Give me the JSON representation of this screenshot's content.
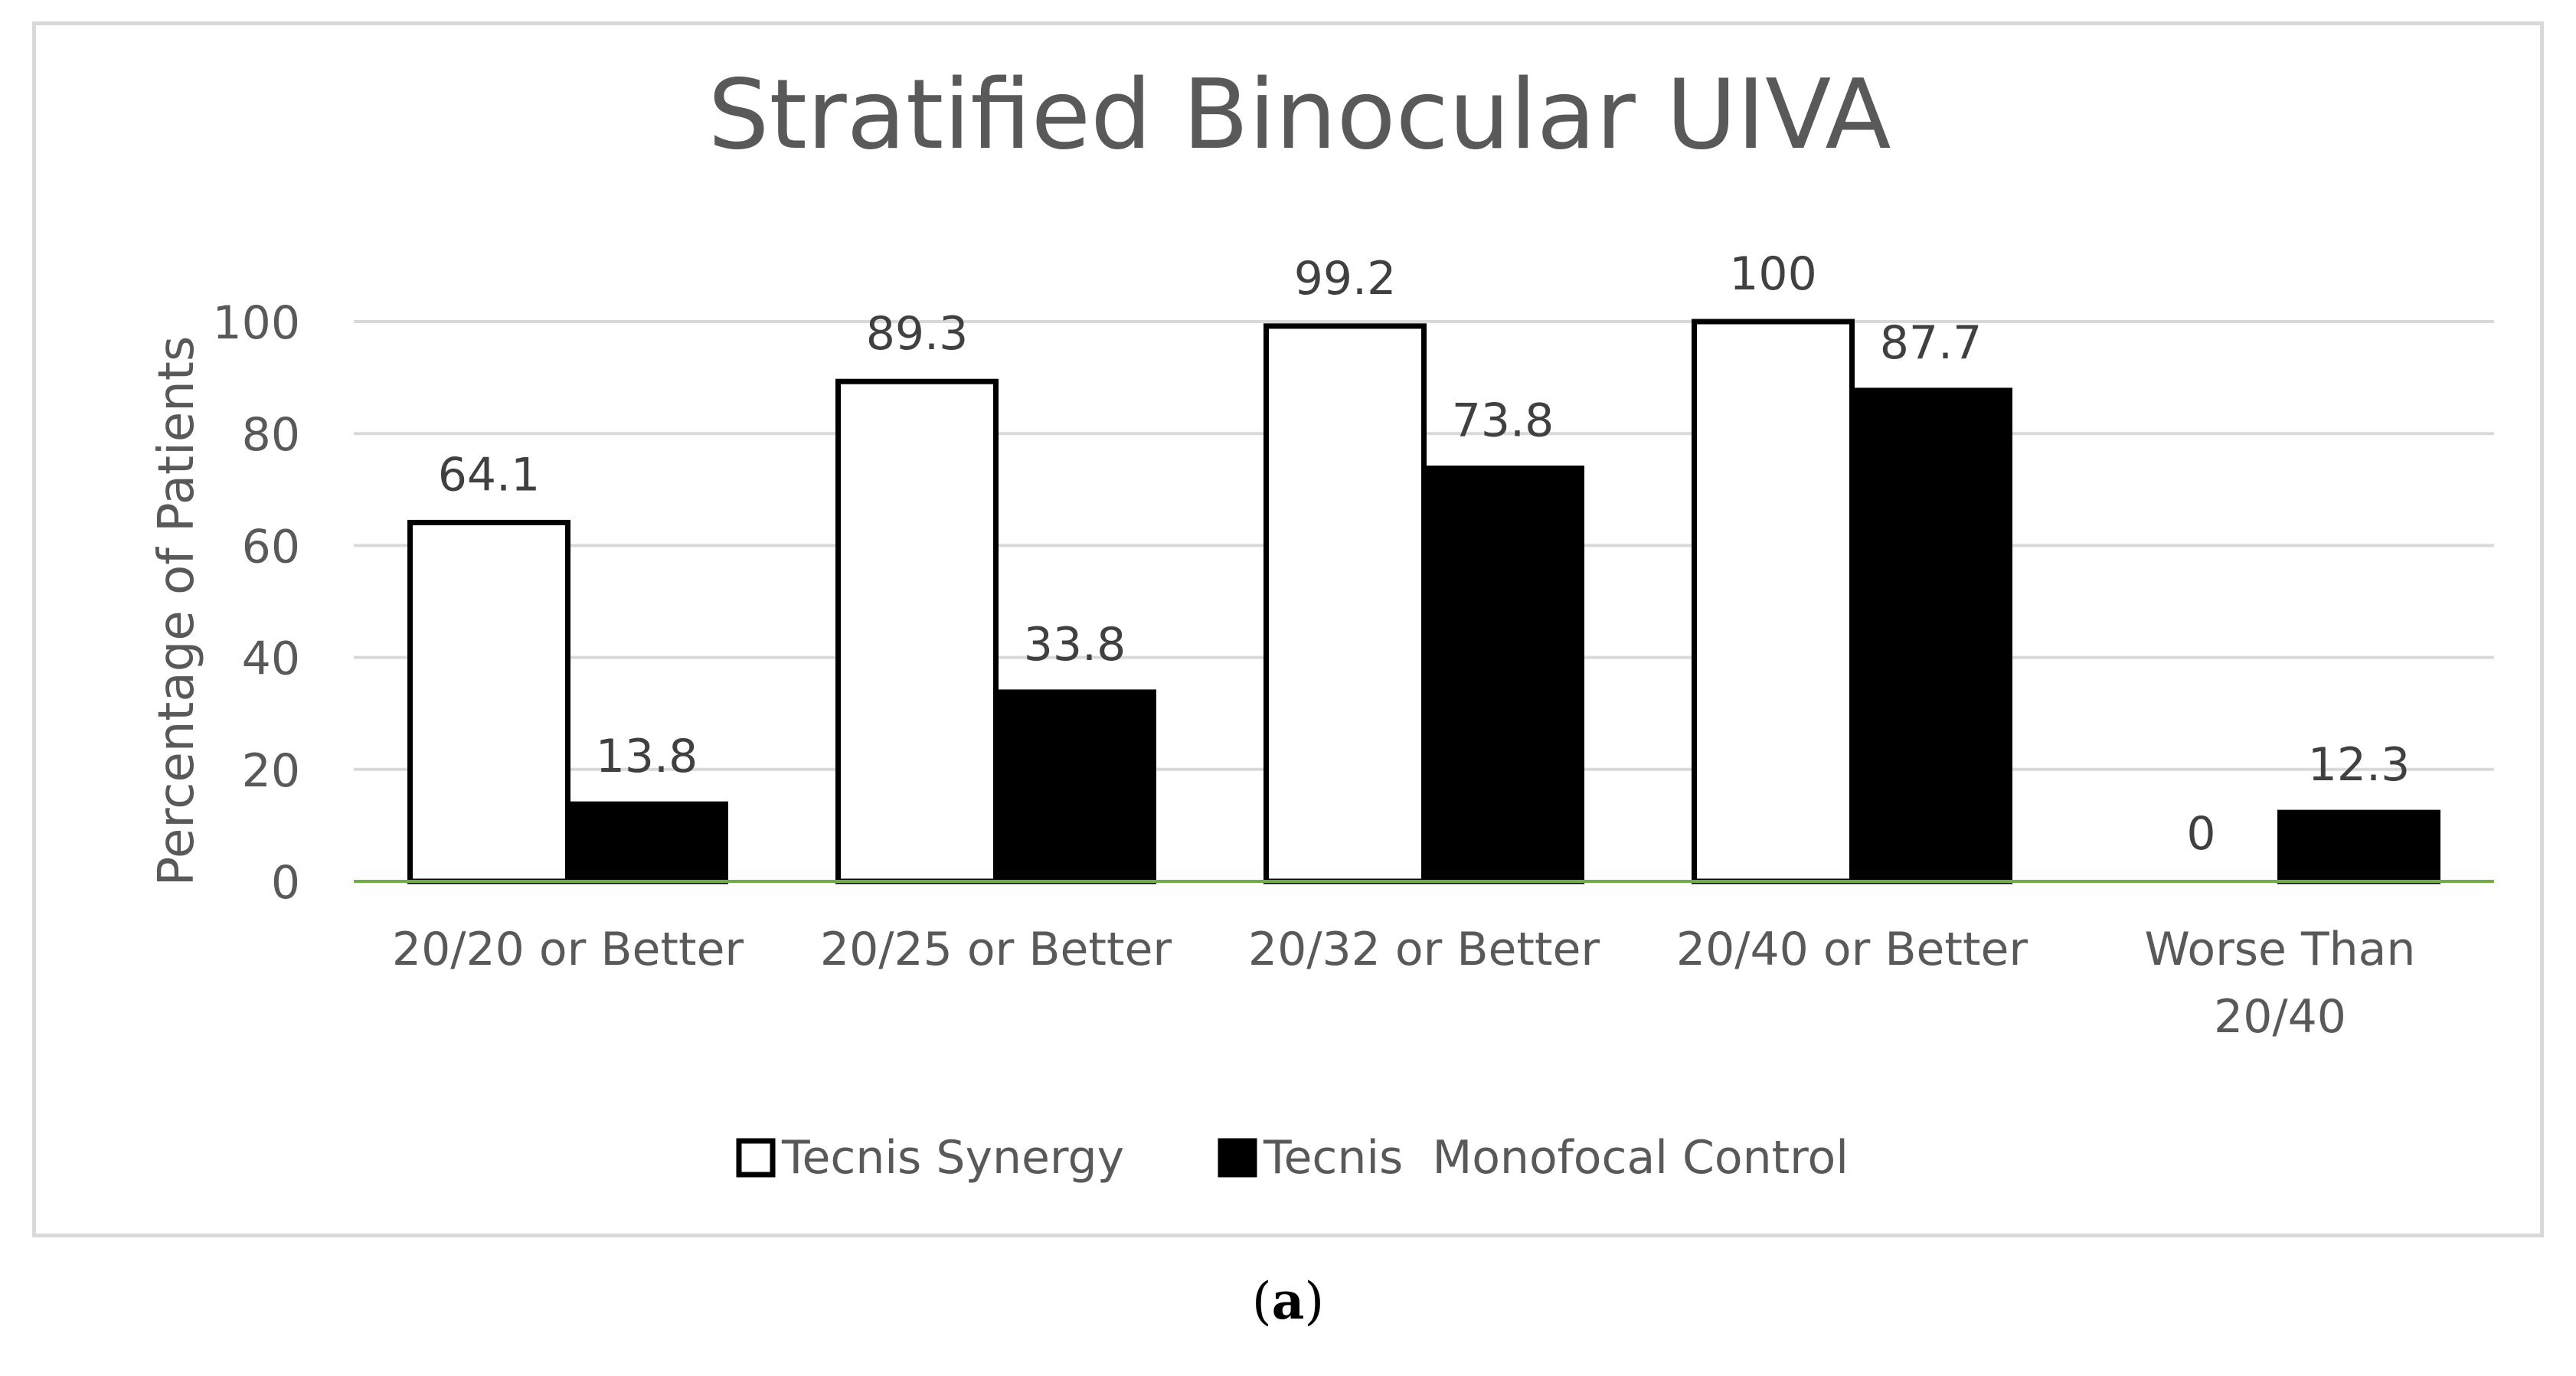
{
  "chart_data": {
    "type": "bar",
    "title": "Stratified Binocular UIVA",
    "xlabel": "",
    "ylabel": "Percentage of Patients",
    "ylim": [
      0,
      100
    ],
    "yticks": [
      0,
      20,
      40,
      60,
      80,
      100
    ],
    "grid": true,
    "legend_position": "bottom",
    "categories": [
      [
        "20/20 or Better"
      ],
      [
        "20/25 or Better"
      ],
      [
        "20/32 or Better"
      ],
      [
        "20/40 or Better"
      ],
      [
        "Worse Than",
        "20/40"
      ]
    ],
    "series": [
      {
        "name": "Tecnis Synergy",
        "values": [
          64.1,
          89.3,
          99.2,
          100,
          0
        ],
        "labels": [
          "64.1",
          "89.3",
          "99.2",
          "100",
          "0"
        ],
        "fill": "#ffffff",
        "stroke": "#000000"
      },
      {
        "name": "Tecnis  Monofocal Control",
        "values": [
          13.8,
          33.8,
          73.8,
          87.7,
          12.3
        ],
        "labels": [
          "13.8",
          "33.8",
          "73.8",
          "87.7",
          "12.3"
        ],
        "fill": "#000000",
        "stroke": "#000000"
      }
    ],
    "colors": {
      "text": "#595959",
      "label_text": "#404040",
      "grid": "#d9d9d9",
      "baseline": "#70ad47"
    }
  },
  "caption": {
    "open": "(",
    "letter": "a",
    "close": ")"
  }
}
